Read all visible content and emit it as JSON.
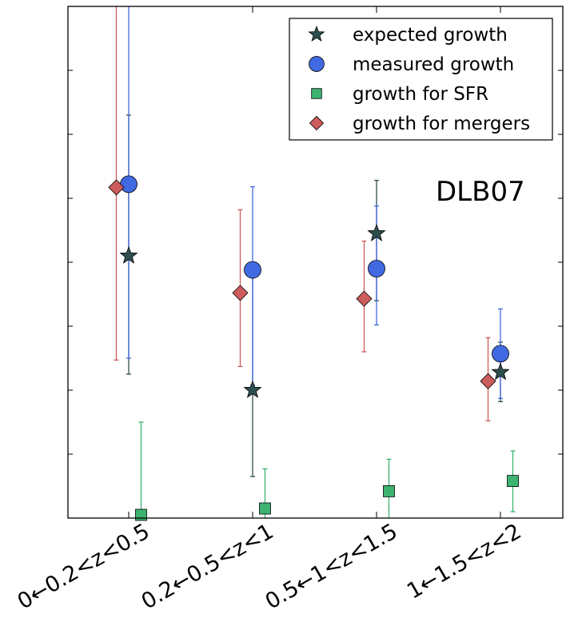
{
  "chart_data": {
    "type": "scatter",
    "title": "",
    "xlabel": "",
    "ylabel": "",
    "ylim": [
      0,
      8
    ],
    "yticks": [
      0,
      1,
      2,
      3,
      4,
      5,
      6,
      7,
      8
    ],
    "show_ytick_labels": false,
    "categories": [
      "0←0.2<z<0.5",
      "0.2←0.5<z<1",
      "0.5←1<z<1.5",
      "1←1.5<z<2"
    ],
    "annotation": "DLB07",
    "legend_position": "top-right",
    "series": [
      {
        "name": "expected growth",
        "marker": "star",
        "color": "#2f4f4f",
        "offset": 0.0,
        "values": [
          4.1,
          2.0,
          4.45,
          2.28
        ],
        "err_low": [
          1.85,
          1.35,
          1.05,
          0.46
        ],
        "err_high": [
          2.2,
          1.85,
          0.83,
          0.47
        ]
      },
      {
        "name": "measured growth",
        "marker": "circle",
        "color": "#4169e1",
        "offset": 0.0,
        "values": [
          5.22,
          3.88,
          3.9,
          2.57
        ],
        "err_low": [
          2.72,
          1.8,
          0.88,
          0.7
        ],
        "err_high": [
          3.5,
          1.3,
          0.98,
          0.7
        ]
      },
      {
        "name": "growth for SFR",
        "marker": "square",
        "color": "#3cb371",
        "offset": 0.1,
        "values": [
          0.05,
          0.15,
          0.42,
          0.58
        ],
        "err_low": [
          0.05,
          0.15,
          0.42,
          0.48
        ],
        "err_high": [
          1.45,
          0.62,
          0.5,
          0.47
        ]
      },
      {
        "name": "growth for mergers",
        "marker": "diamond",
        "color": "#cd5c5c",
        "offset": -0.1,
        "values": [
          5.17,
          3.52,
          3.43,
          2.14
        ],
        "err_low": [
          2.7,
          1.15,
          0.83,
          0.62
        ],
        "err_high": [
          2.83,
          1.3,
          0.9,
          0.68
        ]
      }
    ]
  }
}
